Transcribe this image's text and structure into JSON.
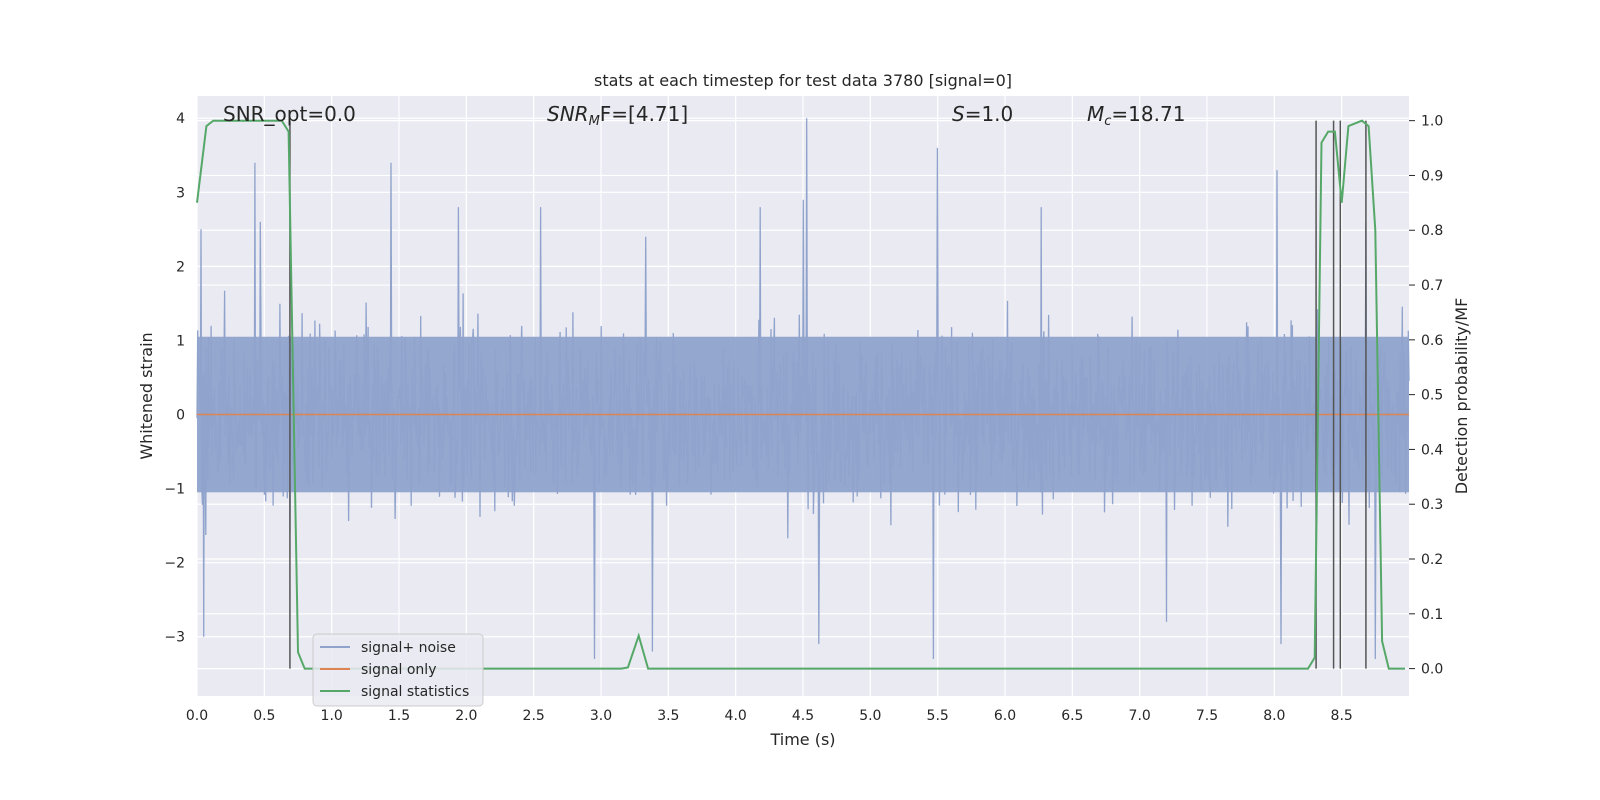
{
  "chart_data": {
    "type": "line",
    "title": "stats at each timestep for test data 3780 [signal=0]",
    "xlabel": "Time (s)",
    "ylabel": "Whitened strain",
    "y2label": "Detection probability/MF",
    "xlim": [
      0,
      9.0
    ],
    "ylim": [
      -3.8,
      4.3
    ],
    "y2lim": [
      -0.05,
      1.045
    ],
    "xticks": [
      "0.0",
      "0.5",
      "1.0",
      "1.5",
      "2.0",
      "2.5",
      "3.0",
      "3.5",
      "4.0",
      "4.5",
      "5.0",
      "5.5",
      "6.0",
      "6.5",
      "7.0",
      "7.5",
      "8.0",
      "8.5"
    ],
    "yticks": [
      "4",
      "3",
      "2",
      "1",
      "0",
      "−1",
      "−2",
      "−3"
    ],
    "y2ticks": [
      "1.0",
      "0.9",
      "0.8",
      "0.7",
      "0.6",
      "0.5",
      "0.4",
      "0.3",
      "0.2",
      "0.1",
      "0.0"
    ],
    "grid": true,
    "legend_position": "lower-left",
    "annotations": {
      "snr_opt": "SNR_opt=0.0",
      "snr_mf_pre": "SNR",
      "snr_mf_sub": "M",
      "snr_mf_post": "F=[4.71]",
      "s_var": "S",
      "s_val": "=1.0",
      "mc_var": "M",
      "mc_sub": "c",
      "mc_val": "=18.71"
    },
    "series": [
      {
        "name": "signal+ noise",
        "color": "#8fa3cc",
        "description_values": "dense noise, amplitude ~±1.5 typical, peaks to ~4.0",
        "spikes": [
          [
            0.03,
            2.5
          ],
          [
            0.05,
            -3.0
          ],
          [
            0.43,
            3.4
          ],
          [
            0.47,
            2.6
          ],
          [
            1.44,
            3.4
          ],
          [
            1.94,
            2.8
          ],
          [
            2.55,
            2.8
          ],
          [
            2.95,
            -3.3
          ],
          [
            3.33,
            2.4
          ],
          [
            3.38,
            -3.2
          ],
          [
            4.18,
            2.8
          ],
          [
            4.5,
            2.9
          ],
          [
            4.53,
            4.0
          ],
          [
            4.62,
            -3.1
          ],
          [
            5.5,
            3.6
          ],
          [
            5.47,
            -3.3
          ],
          [
            6.27,
            2.8
          ],
          [
            7.2,
            -2.8
          ],
          [
            8.02,
            3.3
          ],
          [
            8.05,
            -3.1
          ],
          [
            8.68,
            2.6
          ],
          [
            8.75,
            -3.3
          ]
        ]
      },
      {
        "name": "signal only",
        "color": "#dd8452",
        "values_constant": 0
      },
      {
        "name": "signal statistics",
        "color": "#55a868",
        "axis": "right",
        "x": [
          0.0,
          0.07,
          0.12,
          0.3,
          0.5,
          0.63,
          0.68,
          0.75,
          0.8,
          0.9,
          1.0,
          3.15,
          3.2,
          3.28,
          3.35,
          3.4,
          8.1,
          8.25,
          8.3,
          8.35,
          8.4,
          8.45,
          8.5,
          8.55,
          8.65,
          8.7,
          8.75,
          8.8,
          8.85,
          8.9,
          8.97
        ],
        "y": [
          0.85,
          0.99,
          1.0,
          1.0,
          1.0,
          1.0,
          0.98,
          0.03,
          0.0,
          0.0,
          0.0,
          0.0,
          0.002,
          0.06,
          0.0,
          0.0,
          0.0,
          0.0,
          0.02,
          0.96,
          0.98,
          0.98,
          0.85,
          0.99,
          1.0,
          0.99,
          0.8,
          0.05,
          0.0,
          0.0,
          0.0
        ]
      }
    ],
    "vlines": [
      0.69,
      8.31,
      8.44,
      8.49,
      8.68
    ],
    "legend": [
      "signal+ noise",
      "signal only",
      "signal statistics"
    ]
  }
}
